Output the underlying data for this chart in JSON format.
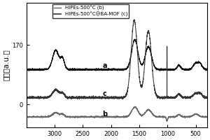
{
  "ylabel": "强度（a.u.）",
  "legend_b": "HIPEs-500°C (b)",
  "legend_c": "HIPEs-500°C@BA-MOF (c)",
  "label_a": "a",
  "label_b": "b",
  "label_c": "c",
  "line_color_a": "#111111",
  "line_color_b": "#666666",
  "line_color_c": "#333333",
  "ytick_0": "0",
  "ytick_170": "170",
  "xticks": [
    3000,
    2500,
    2000,
    1500,
    1000,
    500
  ],
  "xmin": 3500,
  "xmax": 300
}
